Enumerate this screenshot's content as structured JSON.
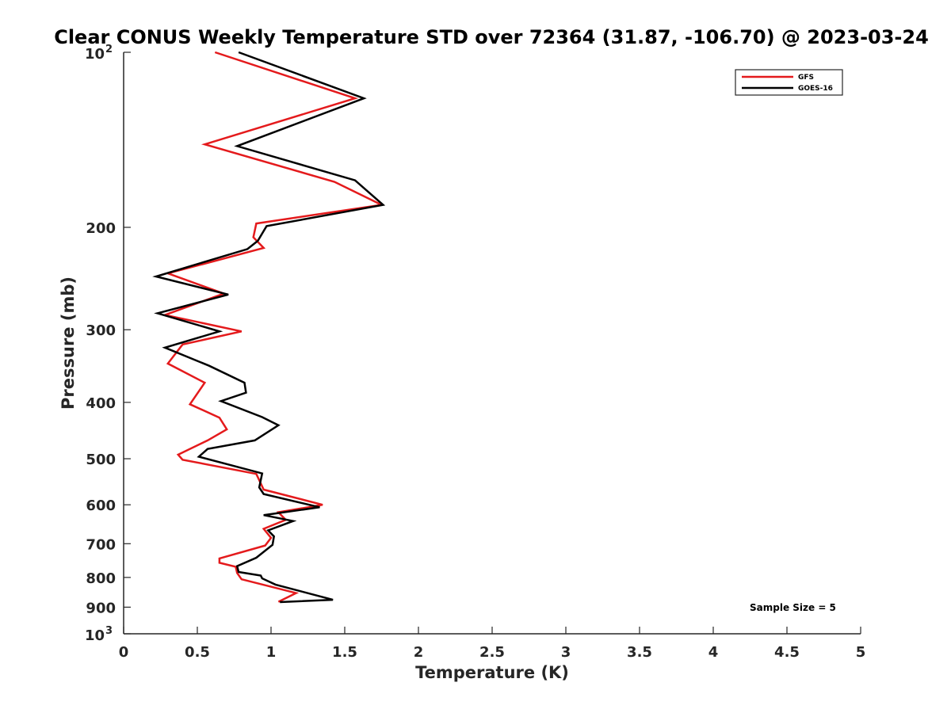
{
  "chart_data": {
    "type": "line",
    "title": "Clear CONUS Weekly Temperature STD over 72364 (31.87, -106.70) @ 2023-03-24",
    "xlabel": "Temperature (K)",
    "ylabel": "Pressure (mb)",
    "xlim": [
      0,
      5
    ],
    "ylim": [
      100,
      1000
    ],
    "y_scale": "log",
    "y_reversed": true,
    "grid": false,
    "legend_position": "top-right",
    "xticks": [
      0,
      0.5,
      1,
      1.5,
      2,
      2.5,
      3,
      3.5,
      4,
      4.5,
      5
    ],
    "xtick_labels": [
      "0",
      "0.5",
      "1",
      "1.5",
      "2",
      "2.5",
      "3",
      "3.5",
      "4",
      "4.5",
      "5"
    ],
    "yticks": [
      200,
      300,
      400,
      500,
      600,
      700,
      800,
      900
    ],
    "ytick_labels": [
      "200",
      "300",
      "400",
      "500",
      "600",
      "700",
      "800",
      "900"
    ],
    "ytick_top": {
      "value": 100,
      "base": "10",
      "exp": "2"
    },
    "ytick_bottom": {
      "value": 1000,
      "base": "10",
      "exp": "3"
    },
    "annotation": "Sample Size = 5",
    "series": [
      {
        "name": "GFS",
        "color": "#e41a1c",
        "x": [
          0.62,
          1.57,
          0.55,
          1.43,
          1.75,
          0.9,
          0.88,
          0.95,
          0.3,
          0.68,
          0.28,
          0.8,
          0.4,
          0.3,
          0.55,
          0.45,
          0.65,
          0.7,
          0.57,
          0.37,
          0.4,
          0.9,
          0.95,
          1.35,
          1.05,
          1.1,
          0.95,
          1.0,
          0.96,
          0.65,
          0.65,
          0.76,
          0.77,
          0.8,
          1.17,
          1.05
        ],
        "y": [
          100,
          120,
          144,
          167,
          183,
          197,
          208,
          217,
          240,
          260,
          283,
          302,
          318,
          343,
          370,
          403,
          425,
          445,
          465,
          492,
          502,
          531,
          565,
          600,
          618,
          637,
          660,
          684,
          705,
          742,
          755,
          767,
          786,
          806,
          851,
          881
        ]
      },
      {
        "name": "GOES-16",
        "color": "#000000",
        "x": [
          0.78,
          1.63,
          0.77,
          1.57,
          1.76,
          0.97,
          0.91,
          0.84,
          0.22,
          0.71,
          0.23,
          0.65,
          0.28,
          0.58,
          0.82,
          0.83,
          0.66,
          0.94,
          1.05,
          0.89,
          0.57,
          0.51,
          0.94,
          0.92,
          0.95,
          1.33,
          0.95,
          1.15,
          0.98,
          1.02,
          1.01,
          0.9,
          0.77,
          0.78,
          0.93,
          0.94,
          1.03,
          1.42,
          1.06
        ],
        "y": [
          100,
          120,
          145,
          166,
          183,
          199,
          211,
          218,
          243,
          261,
          281,
          302,
          322,
          346,
          370,
          385,
          398,
          424,
          438,
          465,
          481,
          496,
          530,
          560,
          575,
          606,
          625,
          640,
          664,
          680,
          703,
          740,
          765,
          783,
          794,
          803,
          823,
          874,
          882
        ]
      }
    ]
  }
}
